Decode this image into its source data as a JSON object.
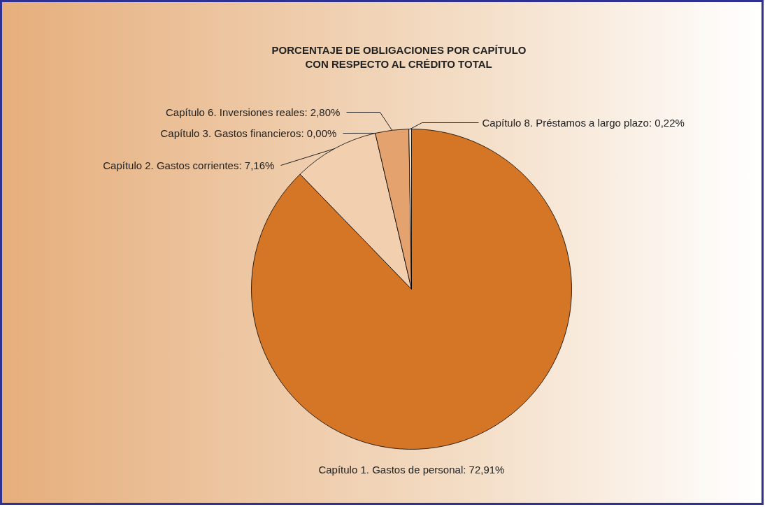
{
  "chart_data": {
    "type": "pie",
    "title": "PORCENTAJE DE OBLIGACIONES POR CAPÍTULO\nCON RESPECTO AL CRÉDITO TOTAL",
    "categories": [
      "Capítulo 1.  Gastos de personal",
      "Capítulo 2.  Gastos corrientes",
      "Capítulo 3.  Gastos financieros",
      "Capítulo 6.  Inversiones reales",
      "Capítulo 8.  Préstamos a largo plazo"
    ],
    "values": [
      72.91,
      7.16,
      0.0,
      2.8,
      0.22
    ],
    "value_labels": [
      "72,91%",
      "7,16%",
      "0,00%",
      "2,80%",
      "0,22%"
    ],
    "colors": [
      "#d57526",
      "#f2cfae",
      "#e9b58a",
      "#e4a26e",
      "#f6e3cc"
    ]
  }
}
